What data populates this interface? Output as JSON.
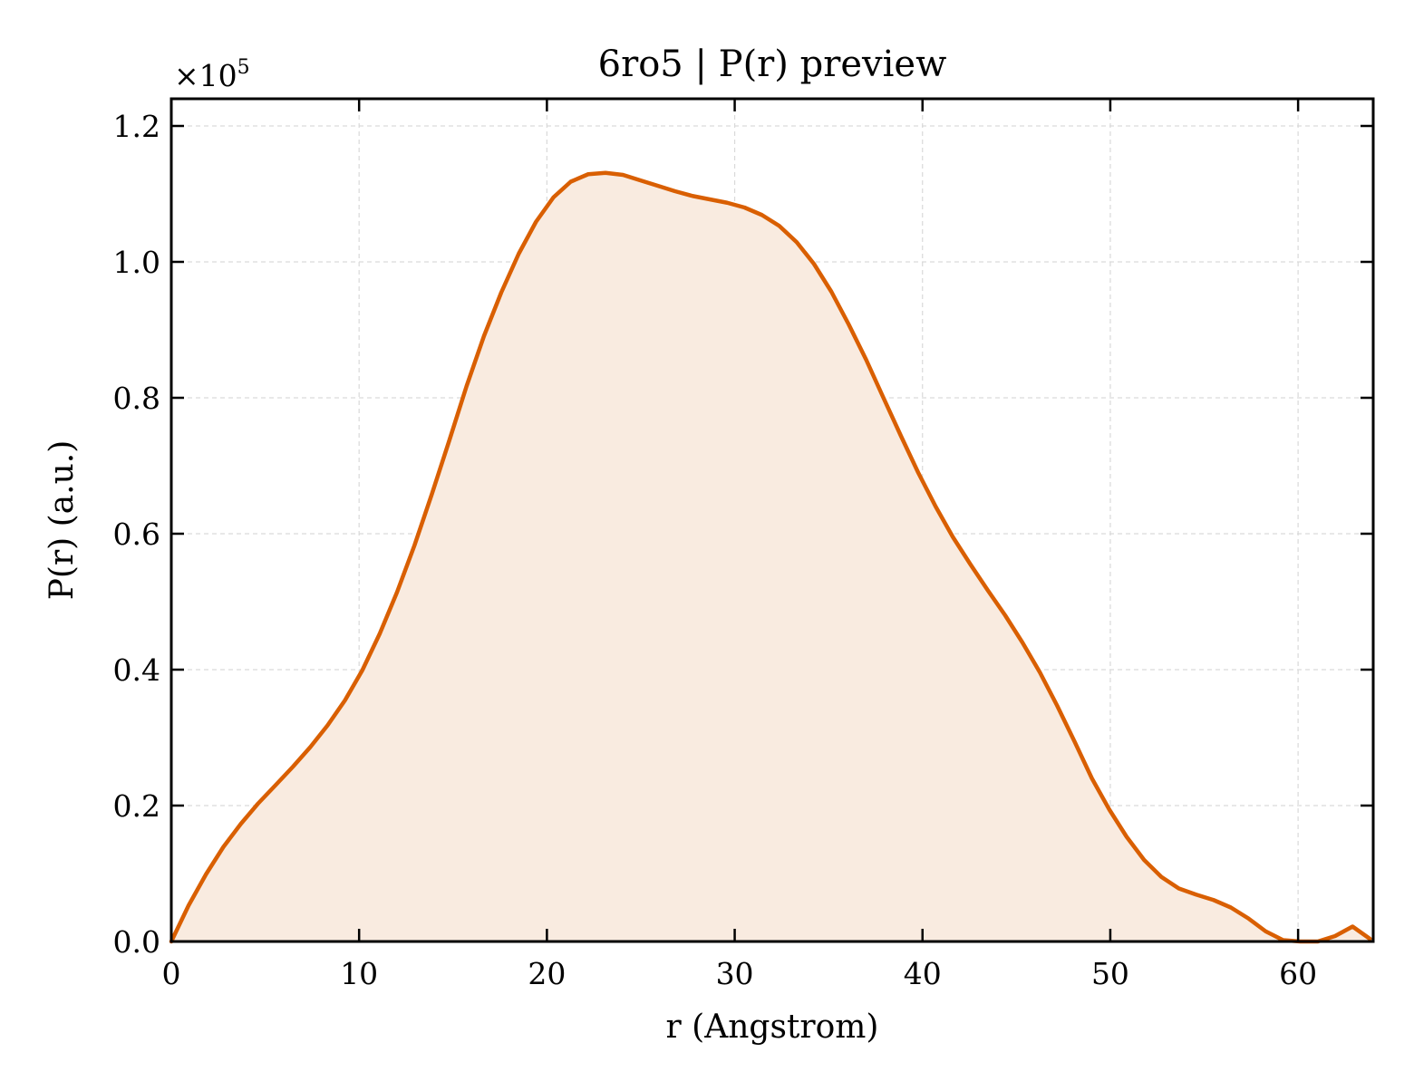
{
  "colors": {
    "line": "#d95f02",
    "fill": "#f9ebe0",
    "grid": "#d9d9d9",
    "axes": "#000000",
    "background": "#ffffff"
  },
  "chart_data": {
    "type": "area",
    "title": "6ro5 | P(r) preview",
    "xlabel": "r (Angstrom)",
    "ylabel": "P(r) (a.u.)",
    "y_offset_base": "×10",
    "y_offset_exponent": "5",
    "xlim": [
      0,
      64
    ],
    "ylim": [
      0,
      1.24
    ],
    "y_multiplier": 100000,
    "grid": true,
    "grid_style": "dashed",
    "legend": "none",
    "x_ticks": [
      {
        "value": 0,
        "label": "0"
      },
      {
        "value": 10,
        "label": "10"
      },
      {
        "value": 20,
        "label": "20"
      },
      {
        "value": 30,
        "label": "30"
      },
      {
        "value": 40,
        "label": "40"
      },
      {
        "value": 50,
        "label": "50"
      },
      {
        "value": 60,
        "label": "60"
      }
    ],
    "y_ticks": [
      {
        "value": 0.0,
        "label": "0.0"
      },
      {
        "value": 0.2,
        "label": "0.2"
      },
      {
        "value": 0.4,
        "label": "0.4"
      },
      {
        "value": 0.6,
        "label": "0.6"
      },
      {
        "value": 0.8,
        "label": "0.8"
      },
      {
        "value": 1.0,
        "label": "1.0"
      },
      {
        "value": 1.2,
        "label": "1.2"
      }
    ],
    "series": [
      {
        "x": [
          0,
          0.92,
          1.85,
          2.77,
          3.7,
          4.62,
          5.55,
          6.47,
          7.4,
          8.32,
          9.25,
          10.17,
          11.1,
          12.02,
          12.95,
          13.87,
          14.8,
          15.72,
          16.65,
          17.57,
          18.5,
          19.42,
          20.35,
          21.27,
          22.2,
          23.12,
          24.05,
          24.97,
          25.9,
          26.82,
          27.75,
          28.67,
          29.6,
          30.52,
          31.45,
          32.37,
          33.3,
          34.22,
          35.15,
          36.07,
          37.0,
          37.92,
          38.85,
          39.77,
          40.7,
          41.62,
          42.55,
          43.47,
          44.4,
          45.32,
          46.25,
          47.17,
          48.1,
          49.02,
          49.95,
          50.87,
          51.8,
          52.72,
          53.65,
          54.57,
          55.5,
          56.42,
          57.35,
          58.27,
          59.2,
          60.12,
          61.05,
          61.97,
          62.9,
          63.82
        ],
        "y": [
          0.0,
          0.053,
          0.099,
          0.139,
          0.173,
          0.203,
          0.23,
          0.257,
          0.286,
          0.318,
          0.355,
          0.399,
          0.453,
          0.514,
          0.583,
          0.658,
          0.737,
          0.817,
          0.891,
          0.955,
          1.012,
          1.059,
          1.095,
          1.118,
          1.129,
          1.131,
          1.128,
          1.12,
          1.112,
          1.104,
          1.097,
          1.092,
          1.087,
          1.08,
          1.069,
          1.053,
          1.029,
          0.997,
          0.956,
          0.908,
          0.856,
          0.8,
          0.744,
          0.69,
          0.64,
          0.595,
          0.555,
          0.517,
          0.48,
          0.44,
          0.396,
          0.347,
          0.294,
          0.24,
          0.194,
          0.154,
          0.12,
          0.095,
          0.078,
          0.069,
          0.061,
          0.05,
          0.034,
          0.015,
          0.002,
          0.0,
          0.0,
          0.008,
          0.022,
          0.004
        ]
      }
    ]
  }
}
